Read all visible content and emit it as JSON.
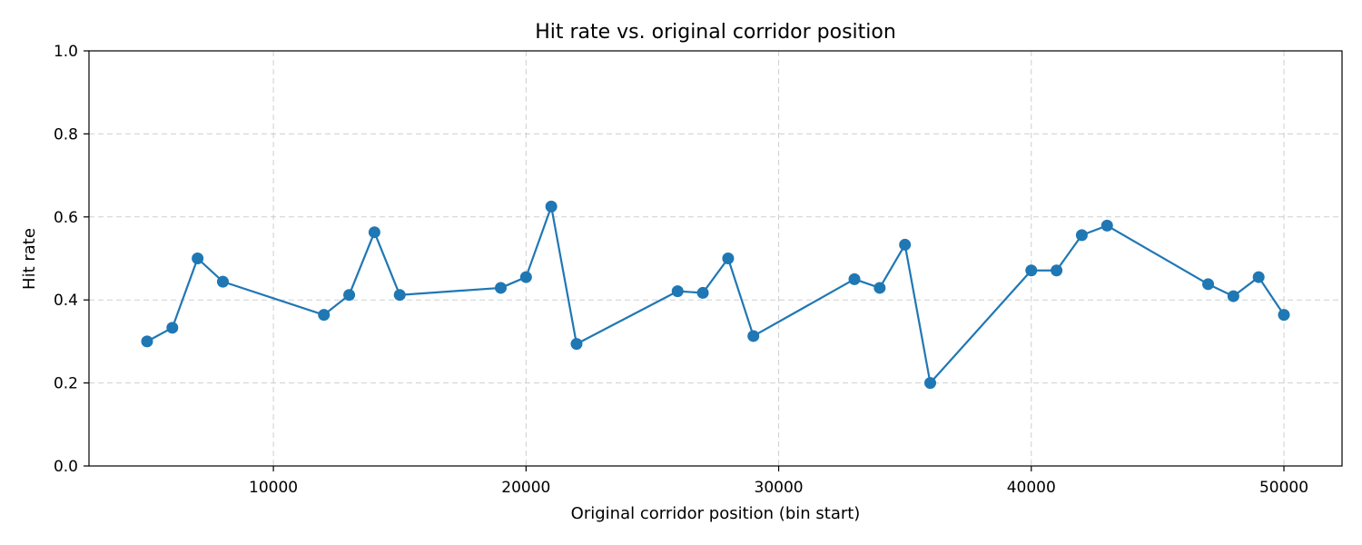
{
  "chart_data": {
    "type": "line",
    "title": "Hit rate vs. original corridor position",
    "xlabel": "Original corridor position (bin start)",
    "ylabel": "Hit rate",
    "xlim": [
      2700,
      52300
    ],
    "ylim": [
      0.0,
      1.0
    ],
    "xticks": [
      10000,
      20000,
      30000,
      40000,
      50000
    ],
    "yticks": [
      0.0,
      0.2,
      0.4,
      0.6,
      0.8,
      1.0
    ],
    "grid": true,
    "color": "#1f77b4",
    "series": [
      {
        "name": "Hit rate",
        "x": [
          5000,
          6000,
          7000,
          8000,
          12000,
          13000,
          14000,
          15000,
          19000,
          20000,
          21000,
          22000,
          26000,
          27000,
          28000,
          29000,
          33000,
          34000,
          35000,
          36000,
          40000,
          41000,
          42000,
          43000,
          47000,
          48000,
          49000,
          50000
        ],
        "y": [
          0.3,
          0.333,
          0.5,
          0.444,
          0.364,
          0.412,
          0.563,
          0.412,
          0.429,
          0.455,
          0.625,
          0.294,
          0.421,
          0.417,
          0.5,
          0.313,
          0.45,
          0.429,
          0.533,
          0.2,
          0.471,
          0.471,
          0.556,
          0.579,
          0.438,
          0.409,
          0.455,
          0.364
        ]
      }
    ]
  }
}
